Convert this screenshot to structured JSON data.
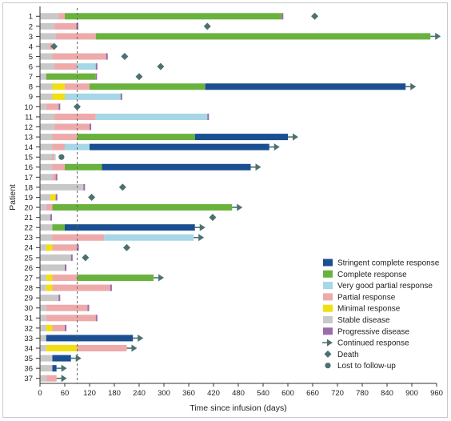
{
  "chart_data": {
    "type": "swimmer",
    "xlabel": "Time since infusion (days)",
    "ylabel": "Patient",
    "xlim": [
      0,
      960
    ],
    "x_ticks": [
      0,
      60,
      120,
      180,
      240,
      300,
      360,
      420,
      480,
      540,
      600,
      660,
      720,
      780,
      840,
      900,
      960
    ],
    "reference_line_day": 90,
    "grid": false,
    "legend_position": "bottom-right",
    "categories": {
      "SCR": {
        "label": "Stringent complete response",
        "color": "#1a4f91"
      },
      "CR": {
        "label": "Complete response",
        "color": "#6ab23e"
      },
      "VGPR": {
        "label": "Very good partial response",
        "color": "#a6d7e6"
      },
      "PR": {
        "label": "Partial response",
        "color": "#eeaaaa"
      },
      "MR": {
        "label": "Minimal response",
        "color": "#f2df12"
      },
      "SD": {
        "label": "Stable disease",
        "color": "#c8c8c8"
      },
      "PD": {
        "label": "Progressive disease",
        "color": "#9a6cab"
      }
    },
    "marker_legend": {
      "continued": "Continued response",
      "death": "Death",
      "lost": "Lost to follow-up"
    },
    "colors": {
      "marker": "#4d7070",
      "refline": "#666666",
      "axis": "#333333"
    },
    "patients": [
      {
        "id": "1",
        "segments": [
          [
            "SD",
            0,
            45
          ],
          [
            "PR",
            45,
            60
          ],
          [
            "CR",
            60,
            585
          ],
          [
            "PD",
            585,
            589
          ]
        ],
        "death": 665
      },
      {
        "id": "2",
        "segments": [
          [
            "SD",
            0,
            35
          ],
          [
            "PR",
            35,
            88
          ],
          [
            "PD",
            88,
            93
          ]
        ],
        "death": 405
      },
      {
        "id": "3",
        "segments": [
          [
            "SD",
            0,
            38
          ],
          [
            "PR",
            38,
            135
          ],
          [
            "CR",
            135,
            945
          ]
        ],
        "continued": true
      },
      {
        "id": "4",
        "segments": [
          [
            "SD",
            0,
            22
          ],
          [
            "PR",
            22,
            30
          ]
        ],
        "death": 34
      },
      {
        "id": "5",
        "segments": [
          [
            "SD",
            0,
            30
          ],
          [
            "PR",
            30,
            160
          ],
          [
            "PD",
            160,
            164
          ]
        ],
        "death": 205
      },
      {
        "id": "6",
        "segments": [
          [
            "SD",
            0,
            35
          ],
          [
            "PR",
            35,
            90
          ],
          [
            "VGPR",
            90,
            135
          ],
          [
            "PD",
            135,
            139
          ]
        ],
        "death": 292
      },
      {
        "id": "7",
        "segments": [
          [
            "SD",
            0,
            15
          ],
          [
            "CR",
            15,
            135
          ],
          [
            "PD",
            135,
            138
          ]
        ],
        "death": 240
      },
      {
        "id": "8",
        "segments": [
          [
            "SD",
            0,
            30
          ],
          [
            "MR",
            30,
            60
          ],
          [
            "PR",
            60,
            120
          ],
          [
            "CR",
            120,
            400
          ],
          [
            "SCR",
            400,
            885
          ]
        ],
        "continued": true
      },
      {
        "id": "9",
        "segments": [
          [
            "SD",
            0,
            30
          ],
          [
            "MR",
            30,
            60
          ],
          [
            "VGPR",
            60,
            195
          ],
          [
            "PD",
            195,
            199
          ]
        ]
      },
      {
        "id": "10",
        "segments": [
          [
            "SD",
            0,
            15
          ],
          [
            "PR",
            15,
            45
          ],
          [
            "PD",
            45,
            49
          ]
        ],
        "death": 90
      },
      {
        "id": "11",
        "segments": [
          [
            "SD",
            0,
            35
          ],
          [
            "PR",
            35,
            135
          ],
          [
            "VGPR",
            135,
            405
          ],
          [
            "PD",
            405,
            409
          ]
        ]
      },
      {
        "id": "12",
        "segments": [
          [
            "SD",
            0,
            35
          ],
          [
            "PR",
            35,
            120
          ],
          [
            "PD",
            120,
            124
          ]
        ]
      },
      {
        "id": "13",
        "segments": [
          [
            "SD",
            0,
            30
          ],
          [
            "PR",
            30,
            90
          ],
          [
            "CR",
            90,
            375
          ],
          [
            "SCR",
            375,
            600
          ]
        ],
        "continued": true
      },
      {
        "id": "14",
        "segments": [
          [
            "SD",
            0,
            30
          ],
          [
            "PR",
            30,
            60
          ],
          [
            "VGPR",
            60,
            120
          ],
          [
            "SCR",
            120,
            555
          ]
        ],
        "continued": true
      },
      {
        "id": "15",
        "segments": [
          [
            "SD",
            0,
            28
          ],
          [
            "PR",
            28,
            35
          ],
          [
            "VGPR",
            35,
            38
          ]
        ],
        "lost": 52
      },
      {
        "id": "16",
        "segments": [
          [
            "SD",
            0,
            30
          ],
          [
            "PR",
            30,
            60
          ],
          [
            "CR",
            60,
            150
          ],
          [
            "SCR",
            150,
            510
          ]
        ],
        "continued": true
      },
      {
        "id": "17",
        "segments": [
          [
            "SD",
            0,
            30
          ],
          [
            "PR",
            30,
            38
          ],
          [
            "PD",
            38,
            42
          ]
        ]
      },
      {
        "id": "18",
        "segments": [
          [
            "SD",
            0,
            105
          ],
          [
            "PD",
            105,
            109
          ]
        ],
        "death": 200
      },
      {
        "id": "19",
        "segments": [
          [
            "SD",
            0,
            25
          ],
          [
            "MR",
            25,
            38
          ],
          [
            "PD",
            38,
            42
          ]
        ],
        "death": 125
      },
      {
        "id": "20",
        "segments": [
          [
            "SD",
            0,
            15
          ],
          [
            "PR",
            15,
            30
          ],
          [
            "CR",
            30,
            465
          ]
        ],
        "continued": true
      },
      {
        "id": "21",
        "segments": [
          [
            "SD",
            0,
            25
          ],
          [
            "PD",
            25,
            29
          ]
        ],
        "death": 418
      },
      {
        "id": "22",
        "segments": [
          [
            "SD",
            0,
            30
          ],
          [
            "CR",
            30,
            60
          ],
          [
            "SCR",
            60,
            375
          ]
        ],
        "continued": true
      },
      {
        "id": "23",
        "segments": [
          [
            "SD",
            0,
            30
          ],
          [
            "PR",
            30,
            155
          ],
          [
            "VGPR",
            155,
            372
          ]
        ],
        "continued": true
      },
      {
        "id": "24",
        "segments": [
          [
            "SD",
            0,
            15
          ],
          [
            "MR",
            15,
            30
          ],
          [
            "PR",
            30,
            90
          ],
          [
            "PD",
            90,
            94
          ]
        ],
        "death": 210
      },
      {
        "id": "25",
        "segments": [
          [
            "SD",
            0,
            75
          ],
          [
            "PD",
            75,
            79
          ]
        ],
        "death": 110
      },
      {
        "id": "26",
        "segments": [
          [
            "SD",
            0,
            60
          ],
          [
            "PD",
            60,
            64
          ]
        ]
      },
      {
        "id": "27",
        "segments": [
          [
            "SD",
            0,
            15
          ],
          [
            "MR",
            15,
            30
          ],
          [
            "PR",
            30,
            90
          ],
          [
            "CR",
            90,
            275
          ]
        ],
        "continued": true
      },
      {
        "id": "28",
        "segments": [
          [
            "SD",
            0,
            15
          ],
          [
            "MR",
            15,
            30
          ],
          [
            "PR",
            30,
            170
          ],
          [
            "PD",
            170,
            174
          ]
        ]
      },
      {
        "id": "29",
        "segments": [
          [
            "SD",
            0,
            45
          ],
          [
            "PD",
            45,
            49
          ]
        ]
      },
      {
        "id": "30",
        "segments": [
          [
            "SD",
            0,
            15
          ],
          [
            "PR",
            15,
            115
          ],
          [
            "PD",
            115,
            119
          ]
        ]
      },
      {
        "id": "31",
        "segments": [
          [
            "SD",
            0,
            15
          ],
          [
            "PR",
            15,
            135
          ],
          [
            "PD",
            135,
            139
          ]
        ]
      },
      {
        "id": "32",
        "segments": [
          [
            "SD",
            0,
            15
          ],
          [
            "MR",
            15,
            30
          ],
          [
            "PR",
            30,
            60
          ],
          [
            "PD",
            60,
            64
          ]
        ]
      },
      {
        "id": "33",
        "segments": [
          [
            "SD",
            0,
            15
          ],
          [
            "SCR",
            15,
            225
          ]
        ],
        "continued": true
      },
      {
        "id": "34",
        "segments": [
          [
            "SD",
            0,
            15
          ],
          [
            "MR",
            15,
            90
          ],
          [
            "PR",
            90,
            210
          ]
        ],
        "continued": true
      },
      {
        "id": "35",
        "segments": [
          [
            "SD",
            0,
            30
          ],
          [
            "SCR",
            30,
            75
          ]
        ],
        "continued": true
      },
      {
        "id": "36",
        "segments": [
          [
            "SD",
            0,
            30
          ],
          [
            "SCR",
            30,
            40
          ]
        ],
        "continued": true
      },
      {
        "id": "37",
        "segments": [
          [
            "SD",
            0,
            15
          ],
          [
            "PR",
            15,
            40
          ]
        ],
        "continued": true
      }
    ]
  }
}
